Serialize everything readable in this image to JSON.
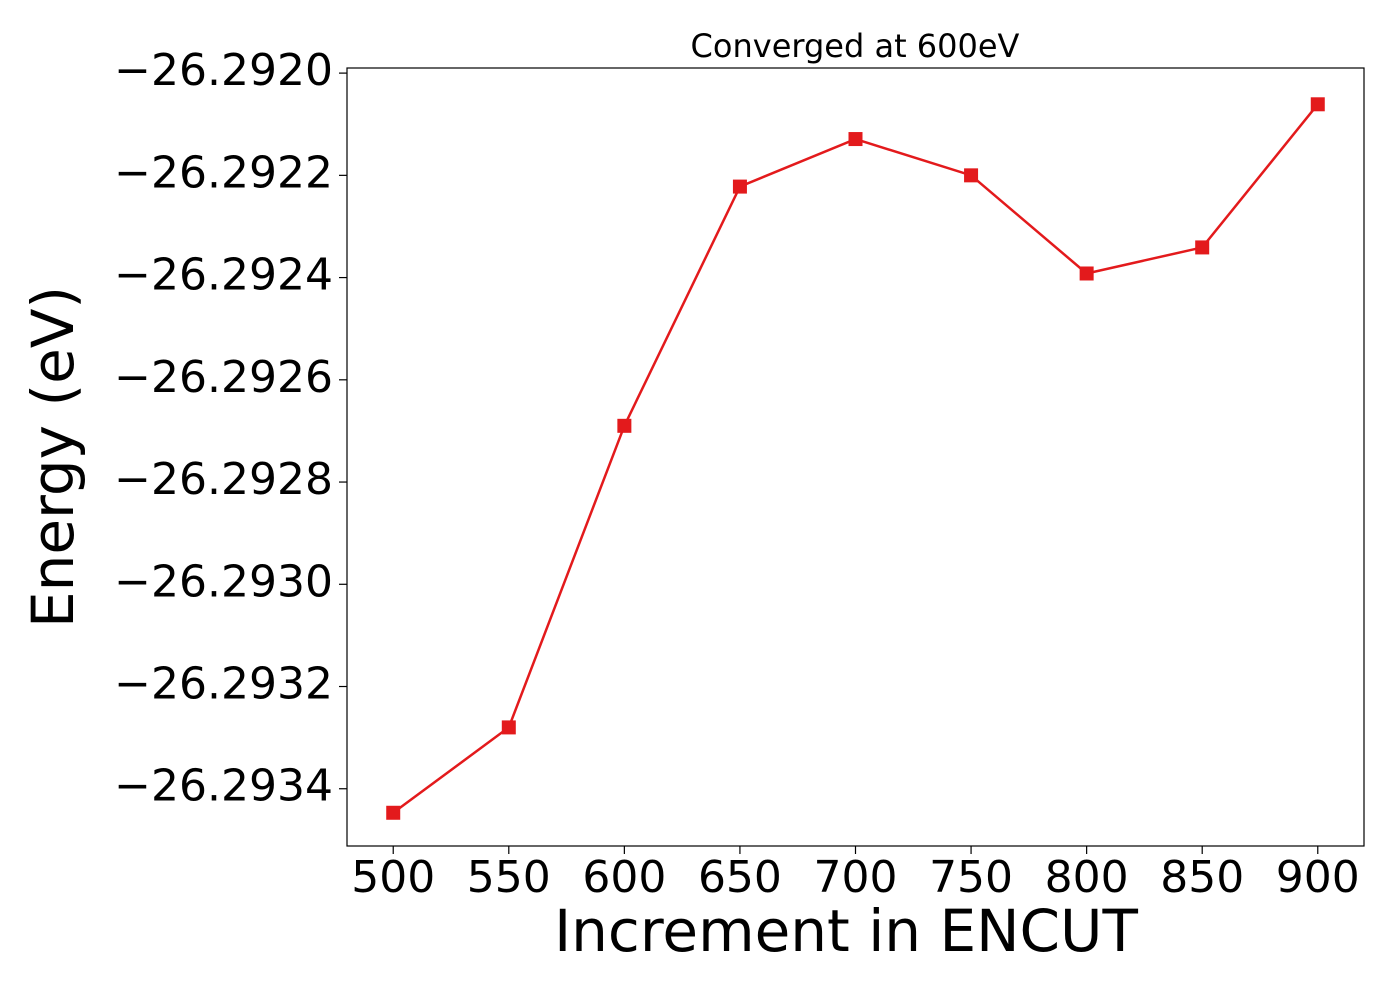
{
  "chart_data": {
    "type": "line",
    "title": "Converged at 600eV",
    "x_label": "Increment in ENCUT",
    "y_label": "Energy (eV)",
    "x": [
      500,
      550,
      600,
      650,
      700,
      750,
      800,
      850,
      900
    ],
    "series": [
      {
        "color": "#e31a1c",
        "marker": "square",
        "values": [
          -26.293447,
          -26.29328,
          -26.29269,
          -26.292222,
          -26.292129,
          -26.2922,
          -26.292392,
          -26.292341,
          -26.292061
        ]
      }
    ],
    "xlim": [
      480,
      920
    ],
    "xticks": [
      500,
      550,
      600,
      650,
      700,
      750,
      800,
      850,
      900
    ],
    "ylim": [
      -26.293512,
      -26.29199
    ],
    "yticks": [
      {
        "value": -26.292,
        "label": "−26.2920"
      },
      {
        "value": -26.2922,
        "label": "−26.2922"
      },
      {
        "value": -26.2924,
        "label": "−26.2924"
      },
      {
        "value": -26.2926,
        "label": "−26.2926"
      },
      {
        "value": -26.2928,
        "label": "−26.2928"
      },
      {
        "value": -26.293,
        "label": "−26.2930"
      },
      {
        "value": -26.2932,
        "label": "−26.2932"
      },
      {
        "value": -26.2934,
        "label": "−26.2934"
      }
    ],
    "grid": false
  }
}
